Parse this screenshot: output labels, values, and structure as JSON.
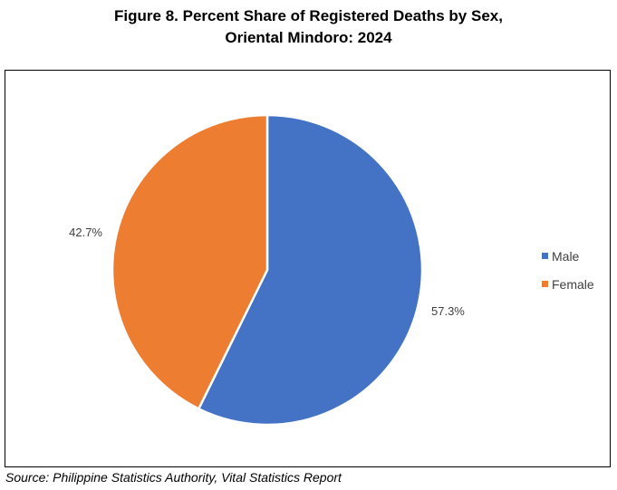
{
  "title_line1": "Figure 8. Percent Share of Registered Deaths by Sex,",
  "title_line2": "Oriental Mindoro: 2024",
  "source": "Source: Philippine Statistics Authority, Vital Statistics Report",
  "chart_data": {
    "type": "pie",
    "categories": [
      "Male",
      "Female"
    ],
    "values": [
      57.3,
      42.7
    ],
    "labels": [
      "57.3%",
      "42.7%"
    ],
    "colors": [
      "#4472C4",
      "#ED7D31"
    ],
    "legend": "right",
    "start_angle": "12 o'clock, clockwise"
  }
}
